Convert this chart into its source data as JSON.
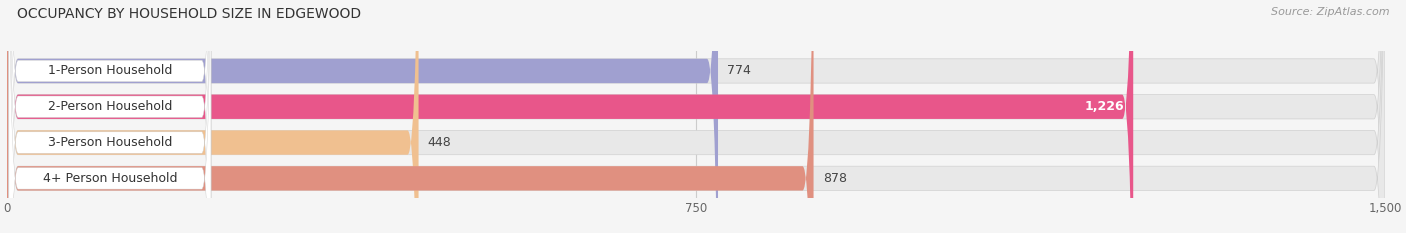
{
  "title": "OCCUPANCY BY HOUSEHOLD SIZE IN EDGEWOOD",
  "source": "Source: ZipAtlas.com",
  "categories": [
    "1-Person Household",
    "2-Person Household",
    "3-Person Household",
    "4+ Person Household"
  ],
  "values": [
    774,
    1226,
    448,
    878
  ],
  "bar_colors": [
    "#a0a0d0",
    "#e8568a",
    "#f0c090",
    "#e09080"
  ],
  "xlim_max": 1500,
  "xticks": [
    0,
    750,
    1500
  ],
  "background_color": "#f5f5f5",
  "bar_bg_color": "#e8e8e8",
  "title_fontsize": 10,
  "source_fontsize": 8,
  "label_fontsize": 9,
  "value_fontsize": 9
}
